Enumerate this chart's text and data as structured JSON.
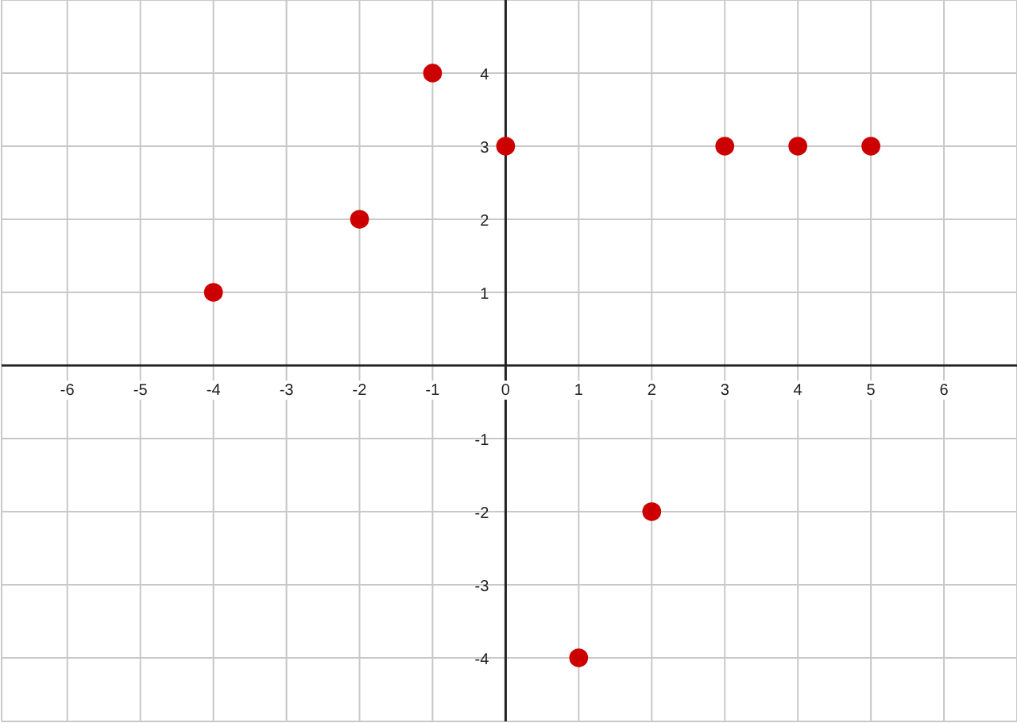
{
  "chart_data": {
    "type": "scatter",
    "x": [
      -4,
      -2,
      -1,
      0,
      1,
      2,
      3,
      4,
      5
    ],
    "values": [
      1,
      2,
      4,
      3,
      -4,
      -2,
      3,
      3,
      3
    ],
    "color": "#cc0000",
    "marker": "circle",
    "xlim": [
      -6.9,
      7
    ],
    "ylim": [
      -4.87,
      5
    ],
    "xticks": [
      -6,
      -5,
      -4,
      -3,
      -2,
      -1,
      0,
      1,
      2,
      3,
      4,
      5,
      6
    ],
    "yticks": [
      -4,
      -3,
      -2,
      -1,
      1,
      2,
      3,
      4
    ],
    "grid": true
  }
}
